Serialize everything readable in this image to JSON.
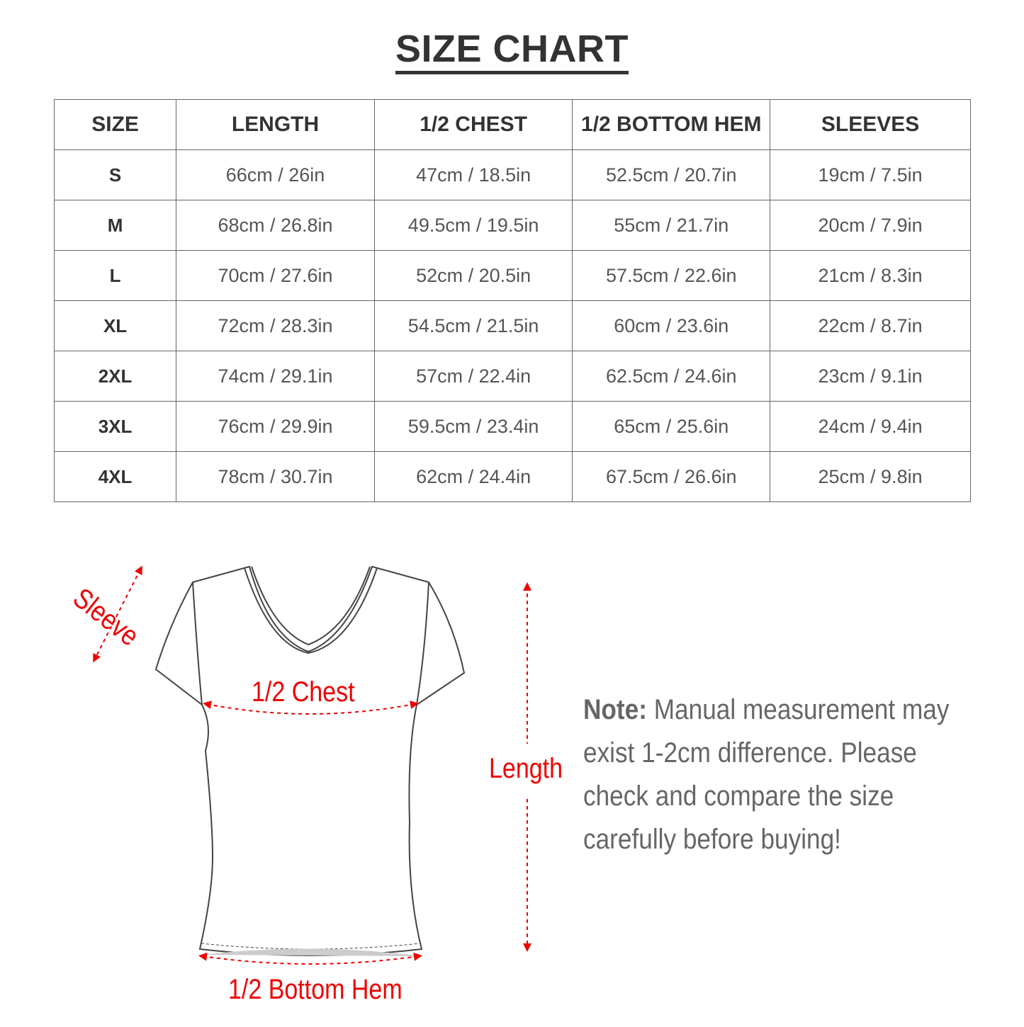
{
  "title": "SIZE CHART",
  "table": {
    "headers": [
      "SIZE",
      "LENGTH",
      "1/2 CHEST",
      "1/2 BOTTOM HEM",
      "SLEEVES"
    ],
    "rows": [
      [
        "S",
        "66cm / 26in",
        "47cm / 18.5in",
        "52.5cm / 20.7in",
        "19cm / 7.5in"
      ],
      [
        "M",
        "68cm / 26.8in",
        "49.5cm / 19.5in",
        "55cm / 21.7in",
        "20cm / 7.9in"
      ],
      [
        "L",
        "70cm / 27.6in",
        "52cm / 20.5in",
        "57.5cm / 22.6in",
        "21cm / 8.3in"
      ],
      [
        "XL",
        "72cm / 28.3in",
        "54.5cm / 21.5in",
        "60cm / 23.6in",
        "22cm / 8.7in"
      ],
      [
        "2XL",
        "74cm / 29.1in",
        "57cm / 22.4in",
        "62.5cm / 24.6in",
        "23cm / 9.1in"
      ],
      [
        "3XL",
        "76cm / 29.9in",
        "59.5cm / 23.4in",
        "65cm / 25.6in",
        "24cm / 9.4in"
      ],
      [
        "4XL",
        "78cm / 30.7in",
        "62cm / 24.4in",
        "67.5cm / 26.6in",
        "25cm / 9.8in"
      ]
    ]
  },
  "diagram": {
    "sleeve": "Sleeve",
    "chest": "1/2 Chest",
    "length": "Length",
    "bottom_hem": "1/2 Bottom Hem",
    "accent_color": "#e00000"
  },
  "note": {
    "label": "Note:",
    "text": " Manual measurement may exist 1-2cm difference. Please check and compare the size carefully before buying!"
  }
}
